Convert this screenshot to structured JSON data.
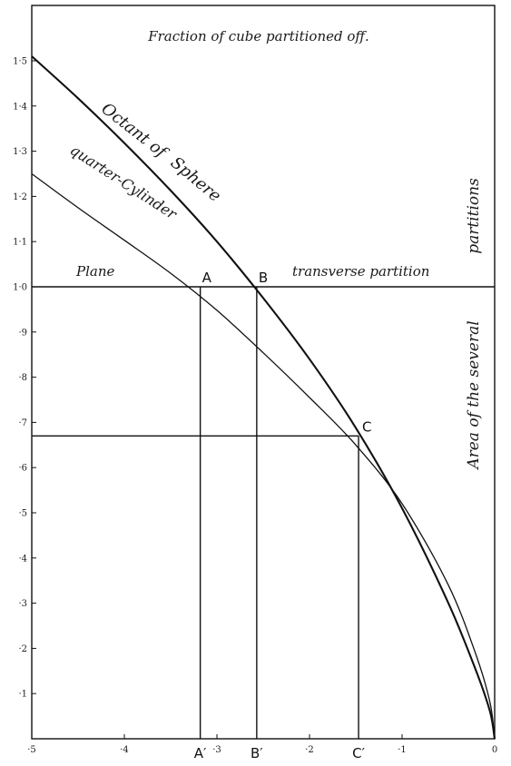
{
  "chart_data": {
    "type": "line",
    "title": "Fraction of cube partitioned off.",
    "ylabel_line1": "Area of the several",
    "ylabel_line2": "partitions",
    "xlim": [
      0.5,
      0
    ],
    "ylim": [
      0,
      1.5
    ],
    "x_ticks": [
      0.5,
      0.4,
      0.3,
      0.2,
      0.1,
      0
    ],
    "x_tick_labels": [
      "·5",
      "·4",
      "·3",
      "·2",
      "·1",
      "0"
    ],
    "y_ticks": [
      0.1,
      0.2,
      0.3,
      0.4,
      0.5,
      0.6,
      0.7,
      0.8,
      0.9,
      1.0,
      1.1,
      1.2,
      1.3,
      1.4,
      1.5
    ],
    "y_tick_labels": [
      "·1",
      "·2",
      "·3",
      "·4",
      "·5",
      "·6",
      "·7",
      "·8",
      "·9",
      "1·0",
      "1·1",
      "1·2",
      "1·3",
      "1·4",
      "1·5"
    ],
    "series": [
      {
        "name": "Octant of Sphere",
        "label_line1": "Octant of",
        "label_line2": "Sphere",
        "x": [
          0.5,
          0.45,
          0.4,
          0.35,
          0.3,
          0.25,
          0.2,
          0.15,
          0.1,
          0.05,
          0.02,
          0.005,
          0
        ],
        "y": [
          1.51,
          1.417,
          1.318,
          1.213,
          1.1,
          0.975,
          0.84,
          0.688,
          0.51,
          0.3,
          0.15,
          0.06,
          0
        ]
      },
      {
        "name": "quarter-Cylinder",
        "label": "quarter-Cylinder",
        "x": [
          0.5,
          0.45,
          0.4,
          0.35,
          0.3,
          0.25,
          0.2,
          0.15,
          0.1,
          0.05,
          0.02,
          0.005,
          0
        ],
        "y": [
          1.25,
          1.175,
          1.103,
          1.03,
          0.948,
          0.854,
          0.755,
          0.65,
          0.52,
          0.34,
          0.185,
          0.08,
          0
        ]
      },
      {
        "name": "transverse partition",
        "label_left": "Plane",
        "label_right": "transverse partition",
        "x": [
          0.5,
          0
        ],
        "y": [
          1.0,
          1.0
        ]
      }
    ],
    "points": [
      {
        "label": "A",
        "x": 0.318,
        "y": 1.0,
        "foot_label": "A′"
      },
      {
        "label": "B",
        "x": 0.257,
        "y": 1.0,
        "foot_label": "B′"
      },
      {
        "label": "C",
        "x": 0.147,
        "y": 0.67,
        "foot_label": "C′"
      }
    ]
  }
}
